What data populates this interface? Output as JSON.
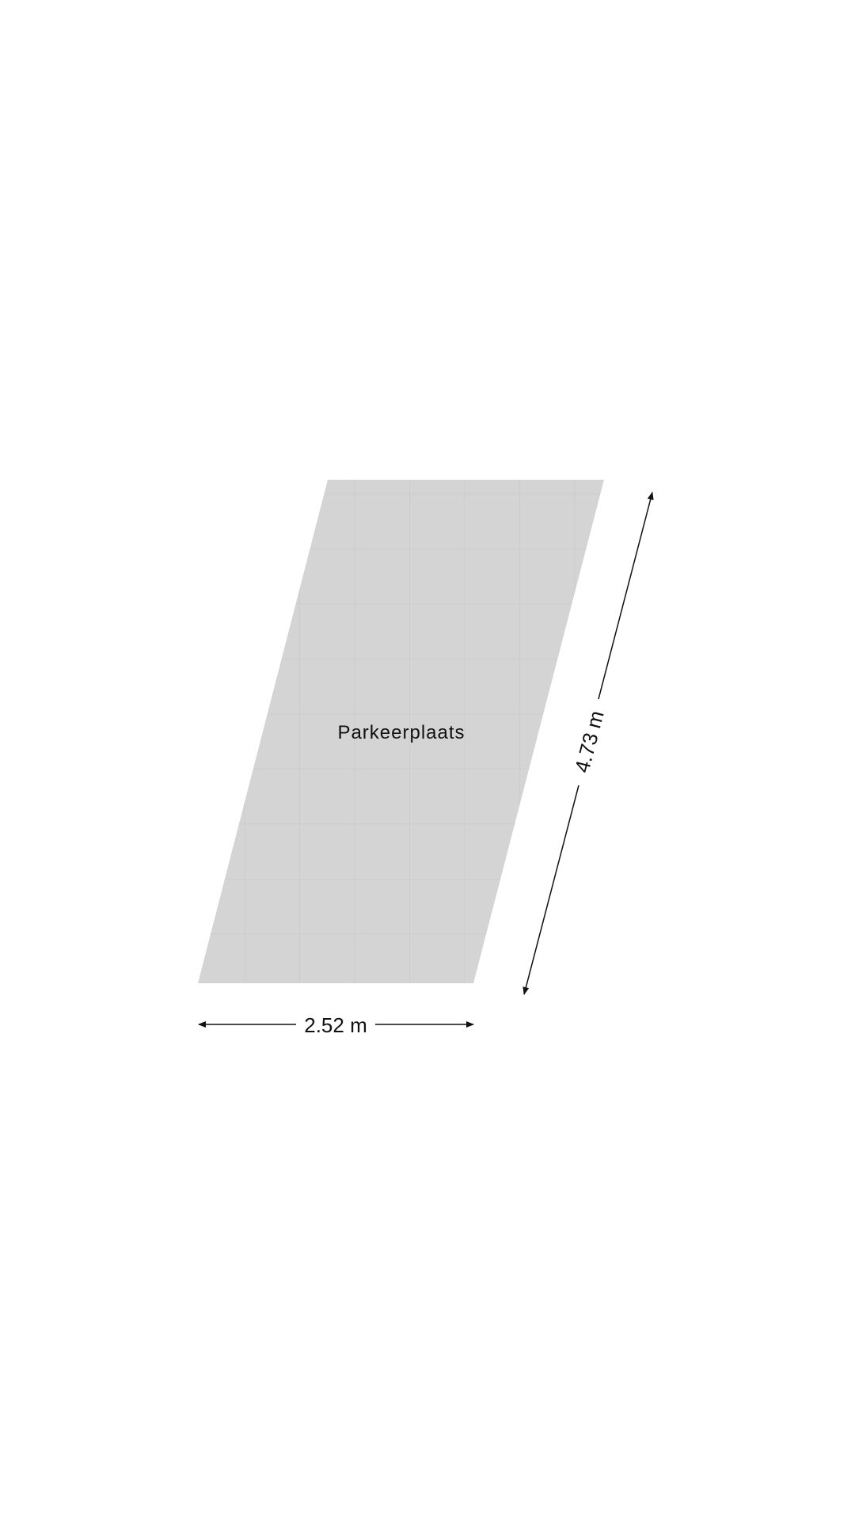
{
  "room": {
    "name": "Parkeerplaats",
    "fill_color": "#d4d4d4"
  },
  "dimensions": {
    "width": "2.52 m",
    "length": "4.73 m"
  }
}
